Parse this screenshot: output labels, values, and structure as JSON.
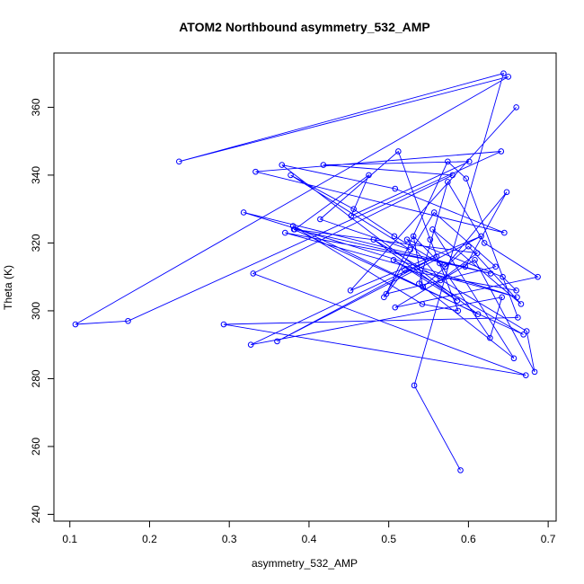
{
  "chart_data": {
    "type": "line",
    "title": "ATOM2 Northbound asymmetry_532_AMP",
    "xlabel": "asymmetry_532_AMP",
    "ylabel": "Theta (K)",
    "xlim": [
      0.08,
      0.71
    ],
    "ylim": [
      238,
      376
    ],
    "x_ticks": [
      0.1,
      0.2,
      0.3,
      0.4,
      0.5,
      0.6,
      0.7
    ],
    "x_tick_labels": [
      "0.1",
      "0.2",
      "0.3",
      "0.4",
      "0.5",
      "0.6",
      "0.7"
    ],
    "y_ticks": [
      240,
      260,
      280,
      300,
      320,
      340,
      360
    ],
    "y_tick_labels": [
      "240",
      "260",
      "280",
      "300",
      "320",
      "340",
      "360"
    ],
    "grid": false,
    "legend": "none",
    "line_color": "#0000ff",
    "marker": "open-circle",
    "series": [
      {
        "x": [
          0.59,
          0.532,
          0.644,
          0.237,
          0.65,
          0.107,
          0.173,
          0.641,
          0.333,
          0.645,
          0.508,
          0.366,
          0.612,
          0.38,
          0.542,
          0.587,
          0.552,
          0.512,
          0.414,
          0.527,
          0.377,
          0.456,
          0.507,
          0.571,
          0.648,
          0.596,
          0.37,
          0.661,
          0.318,
          0.628,
          0.382,
          0.475,
          0.453,
          0.601,
          0.418,
          0.58,
          0.33,
          0.672,
          0.293,
          0.662,
          0.597,
          0.574,
          0.497,
          0.634,
          0.557,
          0.494,
          0.52,
          0.66,
          0.643,
          0.523,
          0.565,
          0.611,
          0.381,
          0.669,
          0.506,
          0.586,
          0.481,
          0.673,
          0.683,
          0.608,
          0.508,
          0.687,
          0.62,
          0.574,
          0.538,
          0.657,
          0.555,
          0.666,
          0.6,
          0.543,
          0.531,
          0.564,
          0.627,
          0.642,
          0.327,
          0.56,
          0.36,
          0.616,
          0.452,
          0.66
        ],
        "y": [
          253,
          278,
          370,
          344,
          369,
          296,
          297,
          347,
          341,
          323,
          336,
          343,
          299,
          325,
          302,
          300,
          321,
          347,
          327,
          318,
          340,
          330,
          322,
          313,
          335,
          313,
          323,
          304,
          329,
          311,
          324,
          340,
          328,
          344,
          343,
          340,
          311,
          281,
          296,
          298,
          339,
          344,
          305,
          313,
          329,
          304,
          312,
          306,
          310,
          321,
          309,
          317,
          324,
          293,
          315,
          303,
          321,
          294,
          282,
          315,
          301,
          310,
          320,
          338,
          308,
          286,
          324,
          302,
          319,
          307,
          322,
          314,
          292,
          304,
          290,
          316,
          291,
          322,
          306,
          360
        ]
      }
    ]
  }
}
